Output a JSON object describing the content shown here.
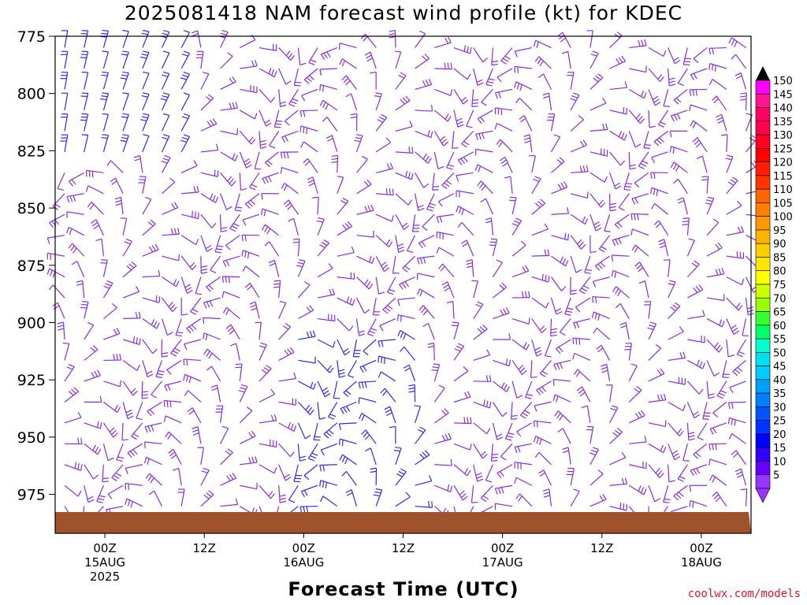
{
  "title": "2025081418 NAM forecast wind profile (kt) for KDEC",
  "xlabel": "Forecast Time (UTC)",
  "credit": "coolwx.com/models",
  "chart_data": {
    "type": "wind_barb_timeheight",
    "y_ticks": [
      "775",
      "800",
      "825",
      "850",
      "875",
      "900",
      "925",
      "950",
      "975"
    ],
    "y_range_hpa": [
      775,
      992
    ],
    "x_ticks": [
      {
        "hours": 6,
        "label": [
          "00Z",
          "15AUG",
          "2025"
        ]
      },
      {
        "hours": 18,
        "label": [
          "12Z"
        ]
      },
      {
        "hours": 30,
        "label": [
          "00Z",
          "16AUG"
        ]
      },
      {
        "hours": 42,
        "label": [
          "12Z"
        ]
      },
      {
        "hours": 54,
        "label": [
          "00Z",
          "17AUG"
        ]
      },
      {
        "hours": 66,
        "label": [
          "12Z"
        ]
      },
      {
        "hours": 78,
        "label": [
          "00Z",
          "18AUG"
        ]
      }
    ],
    "x_range_hours": [
      0,
      84
    ],
    "legend": {
      "position": "right",
      "values": [
        "150",
        "145",
        "140",
        "135",
        "130",
        "125",
        "120",
        "115",
        "110",
        "105",
        "100",
        "95",
        "90",
        "85",
        "80",
        "75",
        "70",
        "65",
        "60",
        "55",
        "50",
        "45",
        "40",
        "35",
        "30",
        "25",
        "20",
        "15",
        "10",
        "5"
      ],
      "colors": [
        "#ff00ff",
        "#ff1493",
        "#ff0066",
        "#ff004c",
        "#ff0022",
        "#ff0000",
        "#ff1f00",
        "#ff3300",
        "#ff6600",
        "#ff8000",
        "#ff9900",
        "#ffb300",
        "#ffcc00",
        "#ffe600",
        "#ffff00",
        "#ccff00",
        "#99ff00",
        "#33ff33",
        "#00ff66",
        "#00ffcc",
        "#00e0ee",
        "#00ccff",
        "#00a0ff",
        "#0080ff",
        "#0055ff",
        "#0033ff",
        "#0000ff",
        "#3300ff",
        "#6600ff",
        "#9933ff"
      ]
    },
    "terrain_color": "#a0522d",
    "speed_color_default": "#8a2be2",
    "speed_color_strong": "#2a2aff"
  }
}
